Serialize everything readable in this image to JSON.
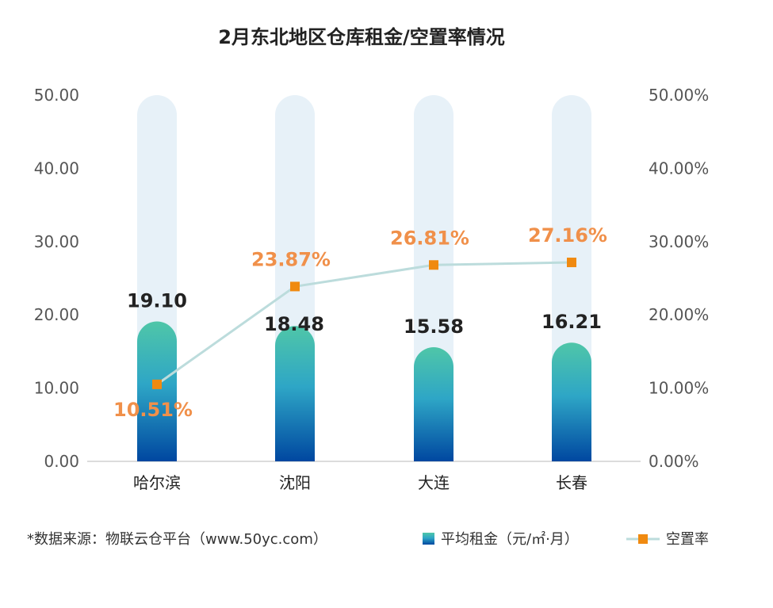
{
  "chart_data": {
    "type": "bar+line",
    "title": "2月东北地区仓库租金/空置率情况",
    "categories": [
      "哈尔滨",
      "沈阳",
      "大连",
      "长春"
    ],
    "series": [
      {
        "name": "平均租金（元/㎡·月）",
        "type": "bar",
        "axis": "left",
        "values": [
          19.1,
          18.48,
          15.58,
          16.21
        ],
        "labels": [
          "19.10",
          "18.48",
          "15.58",
          "16.21"
        ]
      },
      {
        "name": "空置率",
        "type": "line",
        "axis": "right",
        "values": [
          10.51,
          23.87,
          26.81,
          27.16
        ],
        "labels": [
          "10.51%",
          "23.87%",
          "26.81%",
          "27.16%"
        ]
      }
    ],
    "y_left": {
      "range": [
        0,
        50
      ],
      "ticks": [
        "0.00",
        "10.00",
        "20.00",
        "30.00",
        "40.00",
        "50.00"
      ]
    },
    "y_right": {
      "range": [
        0,
        50
      ],
      "ticks": [
        "0.00%",
        "10.00%",
        "20.00%",
        "30.00%",
        "40.00%",
        "50.00%"
      ]
    },
    "grid": false,
    "legend_position": "bottom-right",
    "colors": {
      "bar_top": "#4fc6a8",
      "bar_mid": "#2ea6c6",
      "bar_bottom": "#0047a0",
      "bar_track": "#e7f1f8",
      "line": "#bcdcdc",
      "marker": "#f08a10",
      "rate_label": "#f0904a"
    }
  },
  "footnote": "*数据来源：物联云仓平台（www.50yc.com）"
}
